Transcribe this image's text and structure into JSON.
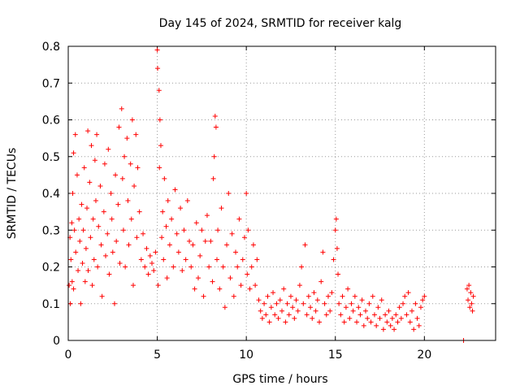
{
  "chart_data": {
    "type": "scatter",
    "title": "Day 145 of 2024, SRMTID for receiver kalg",
    "xlabel": "GPS time / hours",
    "ylabel": "SRMTID / TECUs",
    "xlim": [
      0,
      24
    ],
    "ylim": [
      0,
      0.8
    ],
    "x_ticks": [
      0,
      5,
      10,
      15,
      20
    ],
    "x_tick_labels": [
      "0",
      "5",
      "10",
      "15",
      "20"
    ],
    "y_ticks": [
      0,
      0.1,
      0.2,
      0.3,
      0.4,
      0.5,
      0.6,
      0.7,
      0.8
    ],
    "y_tick_labels": [
      "0",
      "0.1",
      "0.2",
      "0.3",
      "0.4",
      "0.5",
      "0.6",
      "0.7",
      "0.8"
    ],
    "grid": true,
    "marker": "+",
    "color": "#ff0000",
    "series": [
      {
        "name": "SRMTID",
        "points": [
          [
            0.05,
            0.15
          ],
          [
            0.1,
            0.28
          ],
          [
            0.12,
            0.1
          ],
          [
            0.15,
            0.22
          ],
          [
            0.2,
            0.32
          ],
          [
            0.22,
            0.16
          ],
          [
            0.25,
            0.4
          ],
          [
            0.3,
            0.51
          ],
          [
            0.3,
            0.14
          ],
          [
            0.35,
            0.3
          ],
          [
            0.4,
            0.56
          ],
          [
            0.42,
            0.24
          ],
          [
            0.5,
            0.45
          ],
          [
            0.55,
            0.19
          ],
          [
            0.6,
            0.33
          ],
          [
            0.65,
            0.27
          ],
          [
            0.7,
            0.1
          ],
          [
            0.75,
            0.37
          ],
          [
            0.8,
            0.21
          ],
          [
            0.85,
            0.3
          ],
          [
            0.9,
            0.47
          ],
          [
            0.95,
            0.16
          ],
          [
            1.0,
            0.25
          ],
          [
            1.05,
            0.36
          ],
          [
            1.1,
            0.57
          ],
          [
            1.12,
            0.19
          ],
          [
            1.2,
            0.43
          ],
          [
            1.25,
            0.28
          ],
          [
            1.3,
            0.53
          ],
          [
            1.35,
            0.15
          ],
          [
            1.4,
            0.33
          ],
          [
            1.45,
            0.22
          ],
          [
            1.5,
            0.49
          ],
          [
            1.55,
            0.38
          ],
          [
            1.6,
            0.56
          ],
          [
            1.65,
            0.2
          ],
          [
            1.7,
            0.31
          ],
          [
            1.8,
            0.42
          ],
          [
            1.85,
            0.26
          ],
          [
            1.9,
            0.12
          ],
          [
            2.0,
            0.35
          ],
          [
            2.05,
            0.48
          ],
          [
            2.1,
            0.23
          ],
          [
            2.2,
            0.29
          ],
          [
            2.25,
            0.52
          ],
          [
            2.3,
            0.18
          ],
          [
            2.4,
            0.4
          ],
          [
            2.45,
            0.33
          ],
          [
            2.5,
            0.24
          ],
          [
            2.6,
            0.1
          ],
          [
            2.65,
            0.45
          ],
          [
            2.7,
            0.27
          ],
          [
            2.8,
            0.37
          ],
          [
            2.85,
            0.58
          ],
          [
            2.9,
            0.21
          ],
          [
            3.0,
            0.63
          ],
          [
            3.05,
            0.44
          ],
          [
            3.1,
            0.3
          ],
          [
            3.15,
            0.5
          ],
          [
            3.2,
            0.2
          ],
          [
            3.3,
            0.55
          ],
          [
            3.35,
            0.38
          ],
          [
            3.4,
            0.26
          ],
          [
            3.5,
            0.48
          ],
          [
            3.55,
            0.33
          ],
          [
            3.6,
            0.6
          ],
          [
            3.65,
            0.15
          ],
          [
            3.7,
            0.42
          ],
          [
            3.8,
            0.56
          ],
          [
            3.85,
            0.28
          ],
          [
            3.9,
            0.47
          ],
          [
            4.0,
            0.35
          ],
          [
            4.1,
            0.22
          ],
          [
            4.2,
            0.29
          ],
          [
            4.3,
            0.2
          ],
          [
            4.4,
            0.25
          ],
          [
            4.5,
            0.18
          ],
          [
            4.6,
            0.23
          ],
          [
            4.7,
            0.21
          ],
          [
            4.8,
            0.19
          ],
          [
            4.9,
            0.24
          ],
          [
            5.0,
            0.79
          ],
          [
            5.02,
            0.74
          ],
          [
            5.05,
            0.15
          ],
          [
            5.1,
            0.68
          ],
          [
            5.12,
            0.47
          ],
          [
            5.15,
            0.6
          ],
          [
            5.2,
            0.53
          ],
          [
            5.25,
            0.28
          ],
          [
            5.3,
            0.35
          ],
          [
            5.35,
            0.22
          ],
          [
            5.4,
            0.44
          ],
          [
            5.5,
            0.31
          ],
          [
            5.55,
            0.17
          ],
          [
            5.6,
            0.38
          ],
          [
            5.7,
            0.26
          ],
          [
            5.8,
            0.33
          ],
          [
            5.9,
            0.2
          ],
          [
            6.0,
            0.41
          ],
          [
            6.1,
            0.29
          ],
          [
            6.2,
            0.24
          ],
          [
            6.3,
            0.36
          ],
          [
            6.4,
            0.19
          ],
          [
            6.5,
            0.3
          ],
          [
            6.6,
            0.22
          ],
          [
            6.7,
            0.38
          ],
          [
            6.8,
            0.27
          ],
          [
            6.9,
            0.2
          ],
          [
            7.0,
            0.26
          ],
          [
            7.1,
            0.14
          ],
          [
            7.2,
            0.32
          ],
          [
            7.3,
            0.17
          ],
          [
            7.4,
            0.23
          ],
          [
            7.5,
            0.3
          ],
          [
            7.6,
            0.12
          ],
          [
            7.7,
            0.27
          ],
          [
            7.8,
            0.34
          ],
          [
            7.9,
            0.2
          ],
          [
            8.0,
            0.27
          ],
          [
            8.1,
            0.16
          ],
          [
            8.15,
            0.44
          ],
          [
            8.2,
            0.5
          ],
          [
            8.25,
            0.61
          ],
          [
            8.3,
            0.58
          ],
          [
            8.35,
            0.22
          ],
          [
            8.4,
            0.3
          ],
          [
            8.5,
            0.14
          ],
          [
            8.6,
            0.36
          ],
          [
            8.7,
            0.2
          ],
          [
            8.8,
            0.09
          ],
          [
            8.9,
            0.26
          ],
          [
            9.0,
            0.4
          ],
          [
            9.1,
            0.17
          ],
          [
            9.2,
            0.29
          ],
          [
            9.3,
            0.12
          ],
          [
            9.4,
            0.24
          ],
          [
            9.5,
            0.2
          ],
          [
            9.6,
            0.33
          ],
          [
            9.7,
            0.15
          ],
          [
            9.8,
            0.22
          ],
          [
            9.9,
            0.28
          ],
          [
            10.0,
            0.4
          ],
          [
            10.05,
            0.18
          ],
          [
            10.1,
            0.3
          ],
          [
            10.2,
            0.14
          ],
          [
            10.3,
            0.2
          ],
          [
            10.4,
            0.26
          ],
          [
            10.5,
            0.15
          ],
          [
            10.6,
            0.22
          ],
          [
            10.7,
            0.11
          ],
          [
            10.8,
            0.08
          ],
          [
            10.9,
            0.06
          ],
          [
            11.0,
            0.1
          ],
          [
            11.1,
            0.07
          ],
          [
            11.2,
            0.12
          ],
          [
            11.3,
            0.05
          ],
          [
            11.4,
            0.09
          ],
          [
            11.5,
            0.13
          ],
          [
            11.6,
            0.07
          ],
          [
            11.7,
            0.1
          ],
          [
            11.8,
            0.06
          ],
          [
            11.9,
            0.11
          ],
          [
            12.0,
            0.08
          ],
          [
            12.1,
            0.14
          ],
          [
            12.2,
            0.05
          ],
          [
            12.3,
            0.1
          ],
          [
            12.4,
            0.07
          ],
          [
            12.5,
            0.12
          ],
          [
            12.6,
            0.09
          ],
          [
            12.7,
            0.06
          ],
          [
            12.8,
            0.11
          ],
          [
            12.9,
            0.08
          ],
          [
            13.0,
            0.15
          ],
          [
            13.1,
            0.2
          ],
          [
            13.2,
            0.1
          ],
          [
            13.3,
            0.26
          ],
          [
            13.4,
            0.07
          ],
          [
            13.5,
            0.12
          ],
          [
            13.6,
            0.09
          ],
          [
            13.7,
            0.06
          ],
          [
            13.8,
            0.13
          ],
          [
            13.9,
            0.08
          ],
          [
            14.0,
            0.11
          ],
          [
            14.1,
            0.05
          ],
          [
            14.2,
            0.16
          ],
          [
            14.3,
            0.24
          ],
          [
            14.4,
            0.1
          ],
          [
            14.5,
            0.07
          ],
          [
            14.6,
            0.12
          ],
          [
            14.7,
            0.08
          ],
          [
            14.8,
            0.13
          ],
          [
            14.9,
            0.22
          ],
          [
            15.0,
            0.3
          ],
          [
            15.05,
            0.33
          ],
          [
            15.1,
            0.25
          ],
          [
            15.15,
            0.18
          ],
          [
            15.2,
            0.1
          ],
          [
            15.3,
            0.07
          ],
          [
            15.4,
            0.12
          ],
          [
            15.5,
            0.05
          ],
          [
            15.6,
            0.09
          ],
          [
            15.7,
            0.14
          ],
          [
            15.8,
            0.06
          ],
          [
            15.9,
            0.1
          ],
          [
            16.0,
            0.08
          ],
          [
            16.1,
            0.12
          ],
          [
            16.2,
            0.05
          ],
          [
            16.3,
            0.09
          ],
          [
            16.4,
            0.07
          ],
          [
            16.5,
            0.11
          ],
          [
            16.6,
            0.04
          ],
          [
            16.7,
            0.08
          ],
          [
            16.8,
            0.06
          ],
          [
            16.9,
            0.1
          ],
          [
            17.0,
            0.05
          ],
          [
            17.1,
            0.12
          ],
          [
            17.2,
            0.07
          ],
          [
            17.3,
            0.04
          ],
          [
            17.4,
            0.09
          ],
          [
            17.5,
            0.06
          ],
          [
            17.6,
            0.11
          ],
          [
            17.7,
            0.03
          ],
          [
            17.8,
            0.07
          ],
          [
            17.9,
            0.05
          ],
          [
            18.0,
            0.08
          ],
          [
            18.1,
            0.04
          ],
          [
            18.2,
            0.06
          ],
          [
            18.3,
            0.03
          ],
          [
            18.4,
            0.07
          ],
          [
            18.5,
            0.05
          ],
          [
            18.6,
            0.09
          ],
          [
            18.7,
            0.06
          ],
          [
            18.8,
            0.1
          ],
          [
            18.9,
            0.12
          ],
          [
            19.0,
            0.07
          ],
          [
            19.1,
            0.13
          ],
          [
            19.2,
            0.05
          ],
          [
            19.3,
            0.08
          ],
          [
            19.4,
            0.03
          ],
          [
            19.5,
            0.1
          ],
          [
            19.6,
            0.06
          ],
          [
            19.7,
            0.04
          ],
          [
            19.8,
            0.09
          ],
          [
            19.9,
            0.11
          ],
          [
            20.0,
            0.12
          ],
          [
            22.2,
            0.0
          ],
          [
            22.4,
            0.14
          ],
          [
            22.45,
            0.11
          ],
          [
            22.5,
            0.15
          ],
          [
            22.55,
            0.09
          ],
          [
            22.6,
            0.13
          ],
          [
            22.65,
            0.1
          ],
          [
            22.7,
            0.08
          ],
          [
            22.75,
            0.12
          ]
        ]
      }
    ]
  }
}
